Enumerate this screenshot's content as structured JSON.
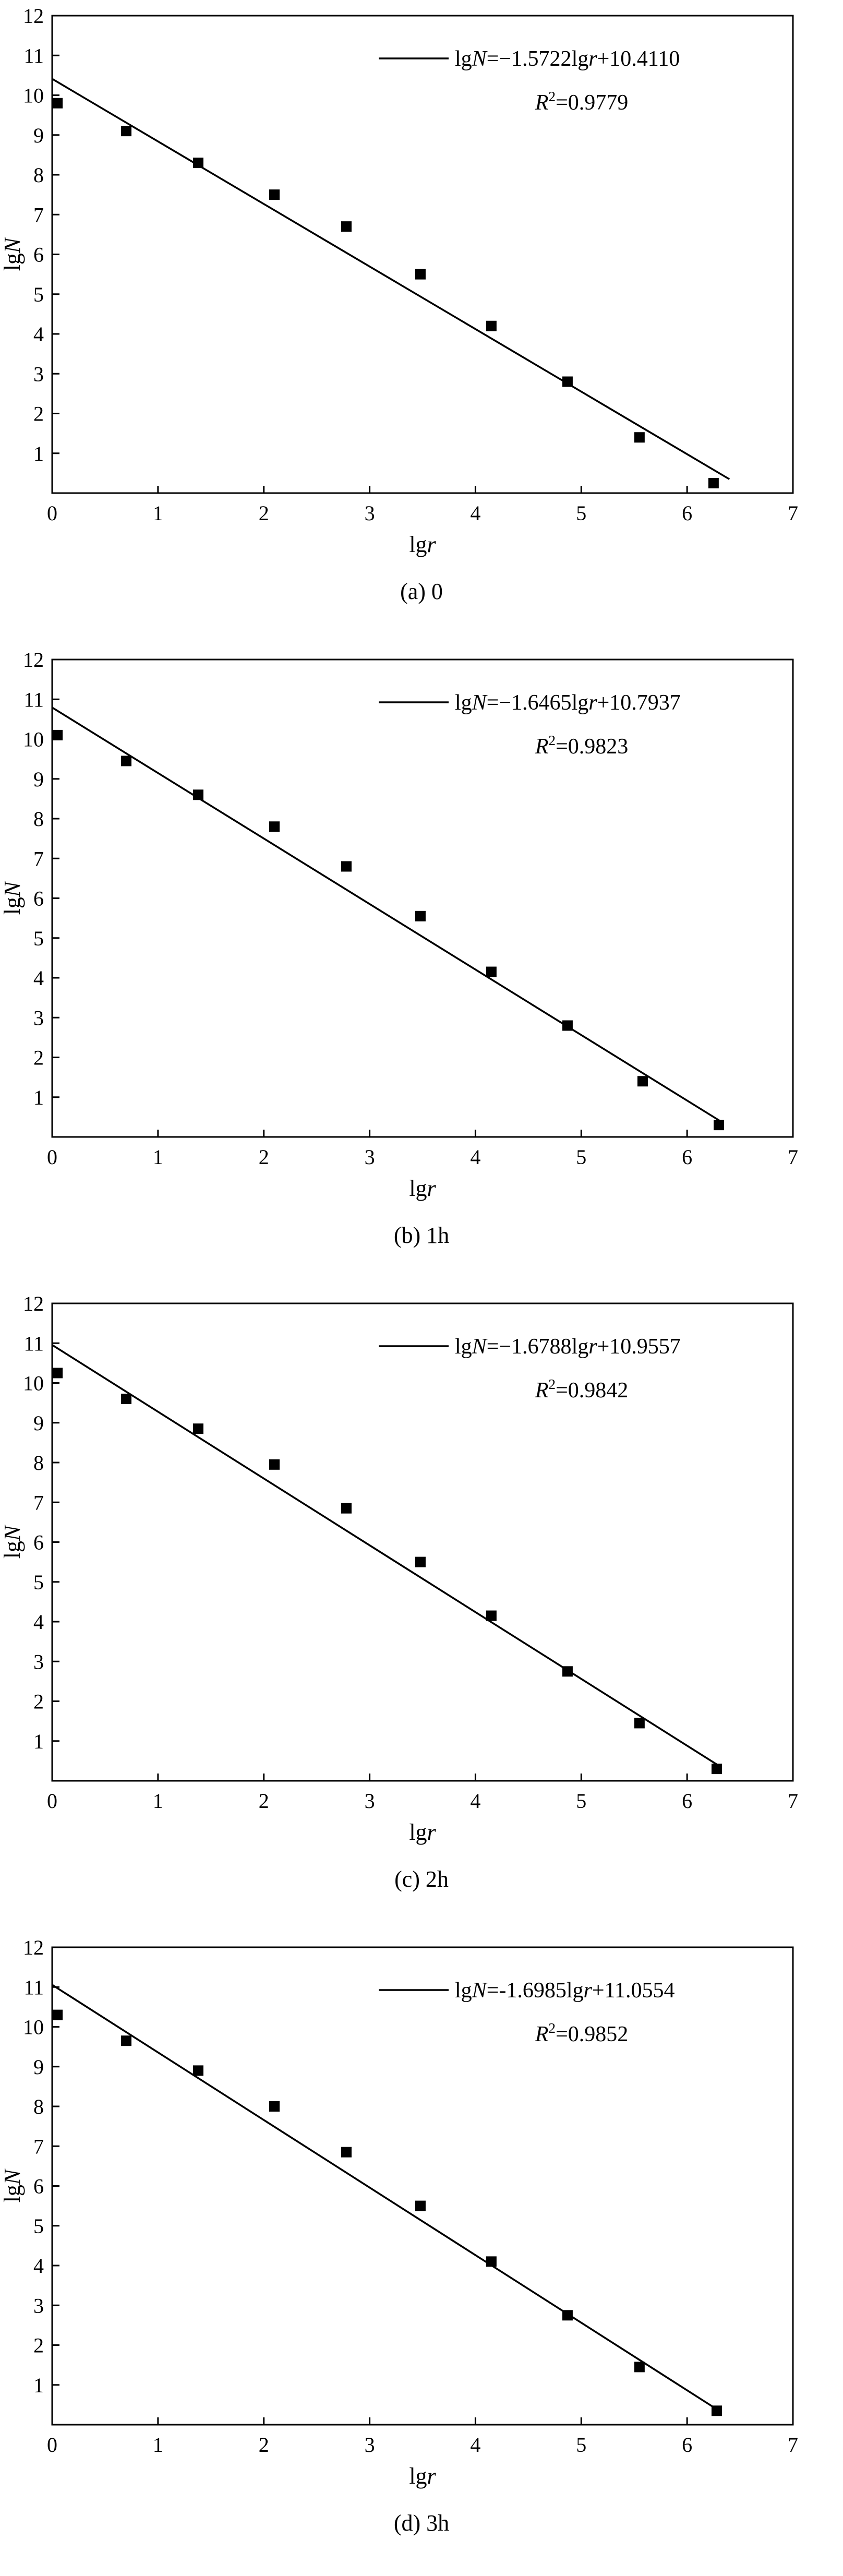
{
  "figure": {
    "background": "#ffffff",
    "ink_color": "#000000"
  },
  "chart_data": [
    {
      "type": "scatter",
      "caption": "(a) 0",
      "xlabel": "lgr",
      "ylabel": "lgN",
      "xlim": [
        0,
        7
      ],
      "ylim": [
        0,
        12
      ],
      "xticks": [
        0,
        1,
        2,
        3,
        4,
        5,
        6,
        7
      ],
      "yticks": [
        1,
        2,
        3,
        4,
        5,
        6,
        7,
        8,
        9,
        10,
        11,
        12
      ],
      "legend": {
        "equation": "lgN=−1.5722lgr+10.4110",
        "r2": "R²=0.9779"
      },
      "fit_line": {
        "slope": -1.5722,
        "intercept": 10.411,
        "x_start": 0,
        "x_end": 6.4
      },
      "points": {
        "x": [
          0.05,
          0.7,
          1.38,
          2.1,
          2.78,
          3.48,
          4.15,
          4.87,
          5.55,
          6.25
        ],
        "y": [
          9.8,
          9.1,
          8.3,
          7.5,
          6.7,
          5.5,
          4.2,
          2.8,
          1.4,
          0.25
        ]
      }
    },
    {
      "type": "scatter",
      "caption": "(b) 1h",
      "xlabel": "lgr",
      "ylabel": "lgN",
      "xlim": [
        0,
        7
      ],
      "ylim": [
        0,
        12
      ],
      "xticks": [
        0,
        1,
        2,
        3,
        4,
        5,
        6,
        7
      ],
      "yticks": [
        1,
        2,
        3,
        4,
        5,
        6,
        7,
        8,
        9,
        10,
        11,
        12
      ],
      "legend": {
        "equation": "lgN=−1.6465lgr+10.7937",
        "r2": "R²=0.9823"
      },
      "fit_line": {
        "slope": -1.6465,
        "intercept": 10.7937,
        "x_start": 0,
        "x_end": 6.34
      },
      "points": {
        "x": [
          0.05,
          0.7,
          1.38,
          2.1,
          2.78,
          3.48,
          4.15,
          4.87,
          5.58,
          6.3
        ],
        "y": [
          10.1,
          9.45,
          8.6,
          7.8,
          6.8,
          5.55,
          4.15,
          2.8,
          1.4,
          0.3
        ]
      }
    },
    {
      "type": "scatter",
      "caption": "(c) 2h",
      "xlabel": "lgr",
      "ylabel": "lgN",
      "xlim": [
        0,
        7
      ],
      "ylim": [
        0,
        12
      ],
      "xticks": [
        0,
        1,
        2,
        3,
        4,
        5,
        6,
        7
      ],
      "yticks": [
        1,
        2,
        3,
        4,
        5,
        6,
        7,
        8,
        9,
        10,
        11,
        12
      ],
      "legend": {
        "equation": "lgN=−1.6788lgr+10.9557",
        "r2": "R²=0.9842"
      },
      "fit_line": {
        "slope": -1.6788,
        "intercept": 10.9557,
        "x_start": 0,
        "x_end": 6.32
      },
      "points": {
        "x": [
          0.05,
          0.7,
          1.38,
          2.1,
          2.78,
          3.48,
          4.15,
          4.87,
          5.55,
          6.28
        ],
        "y": [
          10.25,
          9.6,
          8.85,
          7.95,
          6.85,
          5.5,
          4.15,
          2.75,
          1.45,
          0.3
        ]
      }
    },
    {
      "type": "scatter",
      "caption": "(d) 3h",
      "xlabel": "lgr",
      "ylabel": "lgN",
      "xlim": [
        0,
        7
      ],
      "ylim": [
        0,
        12
      ],
      "xticks": [
        0,
        1,
        2,
        3,
        4,
        5,
        6,
        7
      ],
      "yticks": [
        1,
        2,
        3,
        4,
        5,
        6,
        7,
        8,
        9,
        10,
        11,
        12
      ],
      "legend": {
        "equation": "lgN=-1.6985lgr+11.0554",
        "r2": "R²=0.9852"
      },
      "fit_line": {
        "slope": -1.6985,
        "intercept": 11.0554,
        "x_start": 0,
        "x_end": 6.3
      },
      "points": {
        "x": [
          0.05,
          0.7,
          1.38,
          2.1,
          2.78,
          3.48,
          4.15,
          4.87,
          5.55,
          6.28
        ],
        "y": [
          10.3,
          9.65,
          8.9,
          8.0,
          6.85,
          5.5,
          4.1,
          2.75,
          1.45,
          0.35
        ]
      }
    }
  ]
}
